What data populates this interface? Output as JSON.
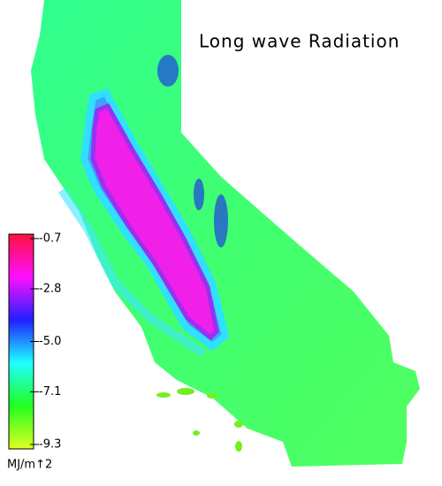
{
  "chart_data": {
    "type": "colormap",
    "title": "Long wave Radiation",
    "colorbar": {
      "unit": "MJ/m↑2",
      "ylim": [
        -9.3,
        -0.7
      ],
      "colors": [
        "#e0ff20",
        "#20ff20",
        "#20ffff",
        "#2020ff",
        "#ff10ff",
        "#ff1040"
      ],
      "yticks": [
        {
          "value": -0.7,
          "label": "-0.7"
        },
        {
          "value": -2.8,
          "label": "-2.8"
        },
        {
          "value": -5.0,
          "label": "-5.0"
        },
        {
          "value": -7.1,
          "label": "-7.1"
        },
        {
          "value": -9.3,
          "label": "-9.3"
        }
      ]
    }
  }
}
